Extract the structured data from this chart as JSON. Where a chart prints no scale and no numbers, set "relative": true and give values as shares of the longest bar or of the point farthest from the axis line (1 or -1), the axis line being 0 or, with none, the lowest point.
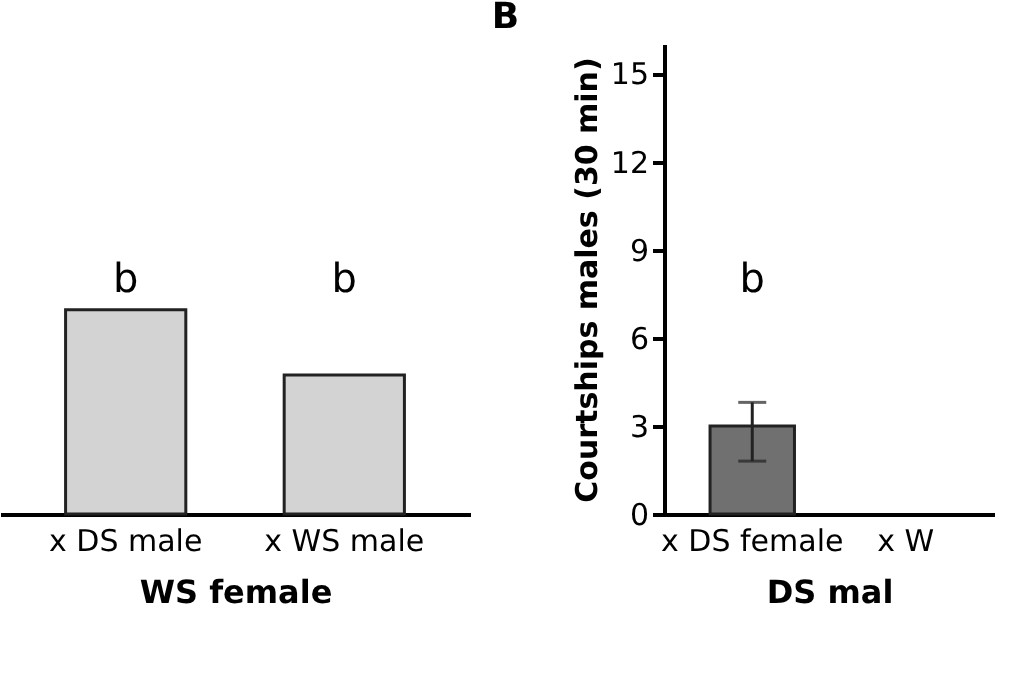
{
  "chart_data": [
    {
      "type": "bar",
      "relative": true,
      "categories": [
        "x DS male",
        "x WS male"
      ],
      "xlabel": "WS female",
      "series": [
        {
          "color": "#d3d3d3",
          "values": [
            1,
            0.68
          ]
        }
      ],
      "annotations": [
        "b",
        "b"
      ]
    },
    {
      "type": "bar",
      "title": "B",
      "categories": [
        "x DS female",
        "x W"
      ],
      "xlabel": "DS mal",
      "ylabel": "Courtships males (30 min)",
      "ylim": [
        0,
        16
      ],
      "yticks": [
        0,
        3,
        6,
        9,
        12,
        15
      ],
      "series": [
        {
          "color": "#707070",
          "values": [
            3.0,
            null
          ],
          "errors": [
            [
              1.8,
              3.8
            ],
            null
          ]
        }
      ],
      "annotations": [
        "b"
      ]
    }
  ]
}
